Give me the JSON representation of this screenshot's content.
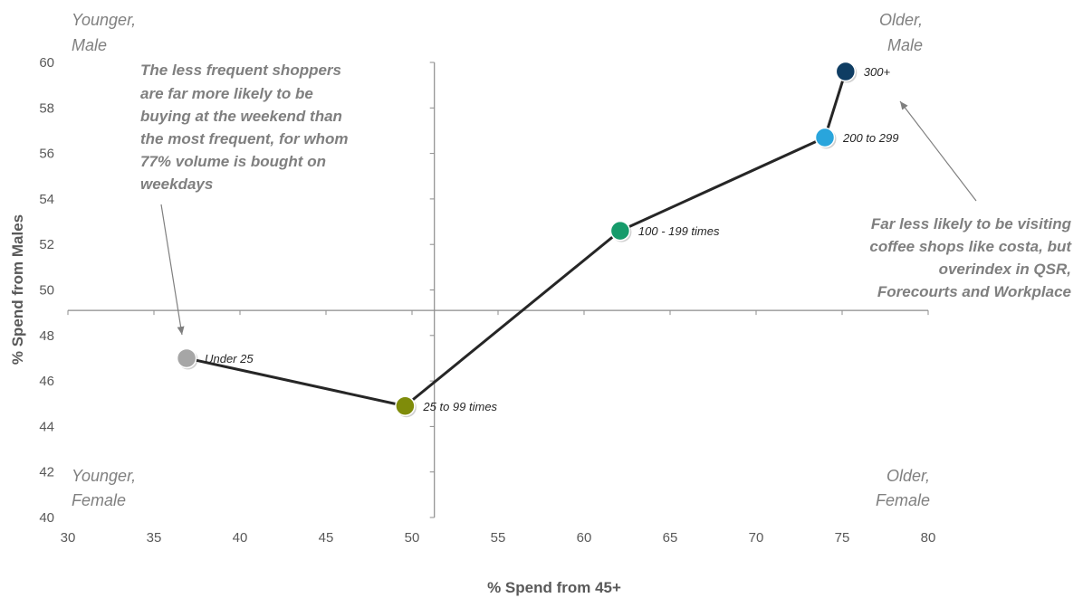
{
  "chart_data": {
    "type": "scatter",
    "xlabel": "% Spend from 45+",
    "ylabel": "% Spend from Males",
    "xlim": [
      30,
      80
    ],
    "ylim": [
      40,
      60
    ],
    "x_ticks": [
      30,
      35,
      40,
      45,
      50,
      55,
      60,
      65,
      70,
      75,
      80
    ],
    "y_ticks": [
      40,
      42,
      44,
      46,
      48,
      50,
      52,
      54,
      56,
      58,
      60
    ],
    "grid": false,
    "connected": true,
    "quadrant_dividers": {
      "x": 51.3,
      "y": 49.1
    },
    "points": [
      {
        "label": "Under 25",
        "x": 36.9,
        "y": 47.0,
        "color": "#a6a6a6"
      },
      {
        "label": "25 to 99 times",
        "x": 49.6,
        "y": 44.9,
        "color": "#7f8c0a"
      },
      {
        "label": "100 - 199 times",
        "x": 62.1,
        "y": 52.6,
        "color": "#169b6b"
      },
      {
        "label": "200 to 299",
        "x": 74.0,
        "y": 56.7,
        "color": "#29a5dc"
      },
      {
        "label": "300+",
        "x": 75.2,
        "y": 59.6,
        "color": "#0f3d63"
      }
    ],
    "quadrant_labels": {
      "top_left": [
        "Younger,",
        "Male"
      ],
      "top_right": [
        "Older,",
        "Male"
      ],
      "bottom_left": [
        "Younger,",
        "Female"
      ],
      "bottom_right": [
        "Older,",
        "Female"
      ]
    },
    "annotations": [
      {
        "lines": [
          "The less frequent shoppers",
          "are far more likely to be",
          "buying at the weekend than",
          "the most frequent, for whom",
          "77% volume is bought on",
          "weekdays"
        ],
        "points_to": "Under 25"
      },
      {
        "lines": [
          "Far less likely to be visiting",
          "coffee shops like costa, but",
          "overindex in QSR,",
          "Forecourts and Workplace"
        ],
        "points_to": "300+"
      }
    ]
  }
}
